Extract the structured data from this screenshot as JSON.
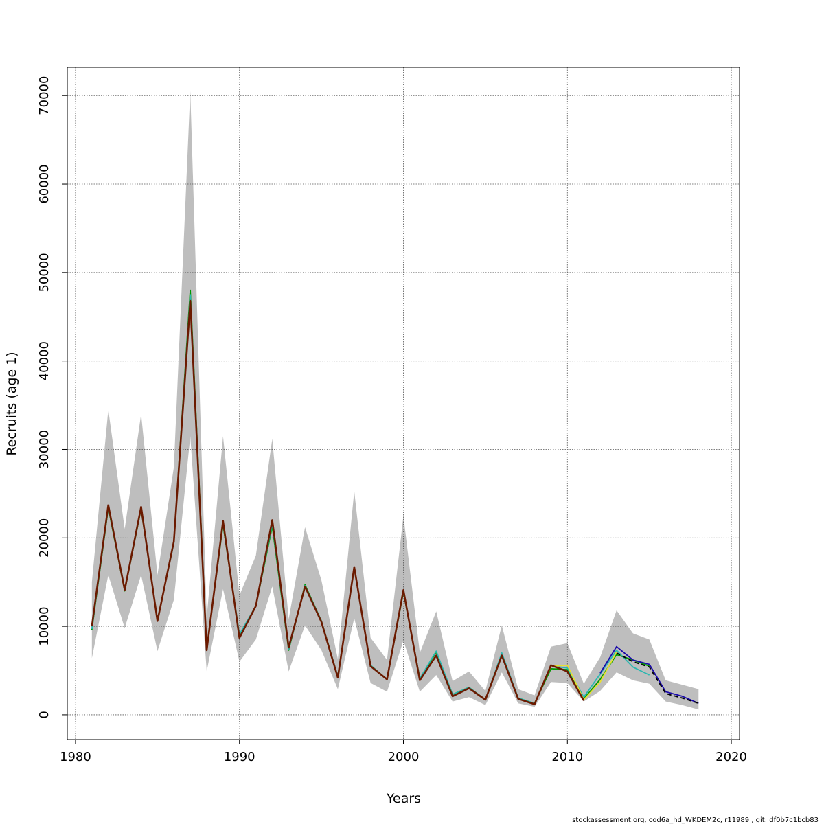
{
  "chart_data": {
    "type": "line",
    "title": "",
    "xlabel": "Years",
    "ylabel": "Recruits (age 1)",
    "xlim": [
      1979.5,
      2020.5
    ],
    "ylim": [
      -2800,
      73200
    ],
    "xticks": [
      1980,
      1990,
      2000,
      2010,
      2020
    ],
    "yticks": [
      0,
      10000,
      20000,
      30000,
      40000,
      50000,
      60000,
      70000
    ],
    "x_tick_labels": [
      "1980",
      "1990",
      "2000",
      "2010",
      "2020"
    ],
    "y_tick_labels": [
      "0",
      "10000",
      "20000",
      "30000",
      "40000",
      "50000",
      "60000",
      "70000"
    ],
    "grid": true,
    "footer": "stockassessment.org, cod6a_hd_WKDEM2c, r11989 , git: df0b7c1bcb83",
    "confidence_band": {
      "x": [
        1981,
        1982,
        1983,
        1984,
        1985,
        1986,
        1987,
        1988,
        1989,
        1990,
        1991,
        1992,
        1993,
        1994,
        1995,
        1996,
        1997,
        1998,
        1999,
        2000,
        2001,
        2002,
        2003,
        2004,
        2005,
        2006,
        2007,
        2008,
        2009,
        2010,
        2011,
        2012,
        2013,
        2014,
        2015,
        2016,
        2017,
        2018
      ],
      "upper": [
        15000,
        34500,
        21000,
        34000,
        15800,
        28000,
        70500,
        11000,
        31500,
        13500,
        18000,
        31200,
        10800,
        21200,
        15200,
        6300,
        25300,
        8700,
        6200,
        22500,
        7000,
        11700,
        3800,
        4900,
        2700,
        10100,
        2900,
        2200,
        7700,
        8100,
        3500,
        6500,
        11800,
        9200,
        8500,
        3900,
        3400,
        2900
      ],
      "lower": [
        6400,
        15800,
        9800,
        15800,
        7200,
        13000,
        31500,
        4900,
        14200,
        6000,
        8500,
        14500,
        4900,
        10100,
        7300,
        2900,
        10900,
        3600,
        2600,
        8400,
        2600,
        4500,
        1500,
        2000,
        1100,
        4800,
        1300,
        900,
        3700,
        3600,
        1500,
        2700,
        4800,
        3900,
        3500,
        1500,
        1100,
        600
      ]
    },
    "series": [
      {
        "color": "#009900",
        "x": [
          1981,
          1982,
          1983,
          1984,
          1985,
          1986,
          1987,
          1988,
          1989,
          1990,
          1991,
          1992,
          1993,
          1994,
          1995,
          1996,
          1997,
          1998,
          1999,
          2000,
          2001,
          2002,
          2003,
          2004,
          2005,
          2006,
          2007,
          2008,
          2009,
          2010,
          2011,
          2012,
          2013,
          2014,
          2015
        ],
        "values": [
          9600,
          23400,
          14000,
          23300,
          10700,
          19500,
          48000,
          7500,
          21500,
          9000,
          12300,
          21300,
          7300,
          14700,
          10600,
          4300,
          16600,
          5600,
          4000,
          13900,
          4100,
          7100,
          2300,
          3100,
          1700,
          6800,
          1900,
          1300,
          5200,
          5100,
          1800,
          4000,
          6800,
          6200,
          5500
        ]
      },
      {
        "color": "#2ab7b0",
        "x": [
          1981,
          1982,
          1983,
          1984,
          1985,
          1986,
          1987,
          1988,
          1989,
          1990,
          1991,
          1992,
          1993,
          1994,
          1995,
          1996,
          1997,
          1998,
          1999,
          2000,
          2001,
          2002,
          2003,
          2004,
          2005,
          2006,
          2007,
          2008,
          2009,
          2010,
          2011,
          2012,
          2013,
          2014,
          2015
        ],
        "values": [
          9700,
          23500,
          14100,
          23400,
          10700,
          19400,
          47500,
          7400,
          21700,
          9100,
          12300,
          21600,
          7400,
          14600,
          10600,
          4300,
          16600,
          5600,
          4000,
          14000,
          4100,
          7200,
          2300,
          3100,
          1700,
          7000,
          1900,
          1300,
          5500,
          5300,
          2000,
          4600,
          7300,
          5400,
          4500
        ]
      },
      {
        "color": "#e8e030",
        "x": [
          2008,
          2009,
          2010,
          2011,
          2012,
          2013
        ],
        "values": [
          1300,
          5500,
          5600,
          1700,
          3700,
          7100
        ]
      },
      {
        "color": "#1a0aaa",
        "x": [
          2012,
          2013,
          2014,
          2015,
          2016,
          2017,
          2018
        ],
        "values": [
          4700,
          7700,
          6200,
          5700,
          2600,
          2100,
          1300
        ]
      },
      {
        "color": "#000000",
        "dashed": true,
        "x": [
          2013,
          2014,
          2015,
          2016,
          2017,
          2018
        ],
        "values": [
          7000,
          6000,
          5400,
          2400,
          1900,
          1300
        ]
      },
      {
        "color": "#6b1a00",
        "x": [
          1981,
          1982,
          1983,
          1984,
          1985,
          1986,
          1987,
          1988,
          1989,
          1990,
          1991,
          1992,
          1993,
          1994,
          1995,
          1996,
          1997,
          1998,
          1999,
          2000,
          2001,
          2002,
          2003,
          2004,
          2005,
          2006,
          2007,
          2008,
          2009,
          2010,
          2011
        ],
        "values": [
          10000,
          23700,
          14100,
          23500,
          10600,
          19600,
          46800,
          7300,
          21900,
          8700,
          12300,
          22000,
          7600,
          14500,
          10500,
          4200,
          16700,
          5500,
          4000,
          14100,
          3900,
          6700,
          2100,
          3000,
          1700,
          6700,
          1800,
          1200,
          5600,
          4900,
          1600
        ]
      }
    ]
  }
}
